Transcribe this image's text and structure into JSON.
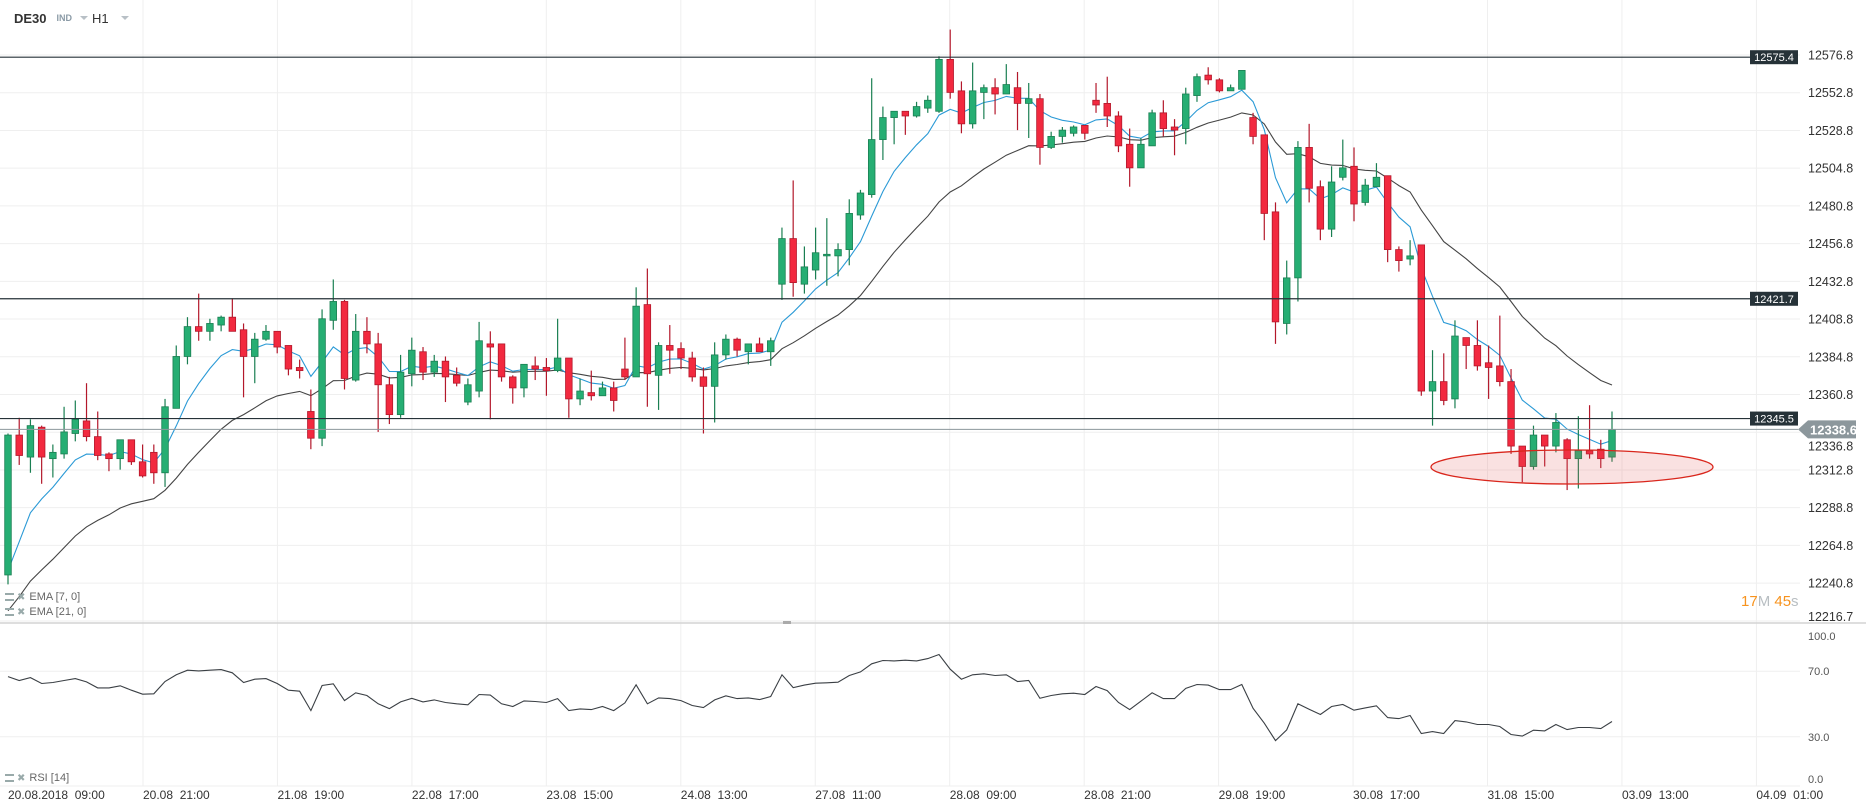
{
  "header": {
    "symbol": "DE30",
    "type": "IND",
    "timeframe": "H1"
  },
  "legend": {
    "ema7": "EMA [7, 0]",
    "ema21": "EMA [21, 0]",
    "rsi": "RSI [14]"
  },
  "timer": {
    "minutes": "17",
    "minutes_unit": "M",
    "seconds": "45",
    "seconds_unit": "s"
  },
  "colors": {
    "up": "#26ae73",
    "up_border": "#1a7f52",
    "down": "#f2293f",
    "down_border": "#b3182b",
    "ema7": "#2b9ad6",
    "ema21": "#444444",
    "level": "#263238",
    "current": "#8c979c",
    "annotation": "#d9261c",
    "timer": "#f7931e"
  },
  "chart_data": [
    {
      "type": "candlestick",
      "title": "DE30 H1",
      "ylim": [
        12216.7,
        12600
      ],
      "y_ticks": [
        "12576.8",
        "12552.8",
        "12528.8",
        "12504.8",
        "12480.8",
        "12456.8",
        "12432.8",
        "12408.8",
        "12384.8",
        "12360.8",
        "12336.8",
        "12312.8",
        "12288.8",
        "12264.8",
        "12240.8",
        "12216.7"
      ],
      "x_ticks": [
        "20.08.2018  09:00",
        "20.08  21:00",
        "21.08  19:00",
        "22.08  17:00",
        "23.08  15:00",
        "24.08  13:00",
        "27.08  11:00",
        "28.08  09:00",
        "28.08  21:00",
        "29.08  19:00",
        "30.08  17:00",
        "31.08  15:00",
        "03.09  13:00",
        "04.09  01:00"
      ],
      "levels": [
        {
          "value": 12575.4,
          "label": "12575.4"
        },
        {
          "value": 12421.7,
          "label": "12421.7"
        },
        {
          "value": 12345.5,
          "label": "12345.5"
        }
      ],
      "current_price": {
        "value": 12338.6,
        "label": "12338.6"
      },
      "ema_seed": {
        "ema7": 12220,
        "ema21": 12212
      },
      "ohlc": [
        [
          12246,
          12336,
          12240,
          12335
        ],
        [
          12335,
          12346,
          12316,
          12322
        ],
        [
          12321,
          12345,
          12311,
          12341
        ],
        [
          12340,
          12341,
          12304,
          12321
        ],
        [
          12320,
          12329,
          12308,
          12324
        ],
        [
          12323,
          12353,
          12320,
          12337
        ],
        [
          12336,
          12357,
          12331,
          12345
        ],
        [
          12344,
          12368,
          12331,
          12334
        ],
        [
          12334,
          12350,
          12319,
          12322
        ],
        [
          12323,
          12324,
          12312,
          12320
        ],
        [
          12320,
          12332,
          12313,
          12332
        ],
        [
          12332,
          12332,
          12316,
          12318
        ],
        [
          12318,
          12329,
          12308,
          12309
        ],
        [
          12324,
          12329,
          12304,
          12311
        ],
        [
          12311,
          12358,
          12302,
          12353
        ],
        [
          12352,
          12392,
          12352,
          12385
        ],
        [
          12385,
          12410,
          12380,
          12404
        ],
        [
          12404,
          12425,
          12395,
          12401
        ],
        [
          12401,
          12409,
          12395,
          12406
        ],
        [
          12405,
          12411,
          12401,
          12410
        ],
        [
          12410,
          12422,
          12401,
          12401
        ],
        [
          12402,
          12406,
          12359,
          12385
        ],
        [
          12385,
          12400,
          12368,
          12396
        ],
        [
          12396,
          12405,
          12395,
          12401
        ],
        [
          12401,
          12401,
          12387,
          12391
        ],
        [
          12392,
          12392,
          12373,
          12377
        ],
        [
          12378,
          12383,
          12371,
          12376
        ],
        [
          12350,
          12364,
          12326,
          12333
        ],
        [
          12333,
          12415,
          12328,
          12409
        ],
        [
          12408,
          12434,
          12402,
          12420
        ],
        [
          12420,
          12421,
          12364,
          12371
        ],
        [
          12370,
          12412,
          12369,
          12401
        ],
        [
          12401,
          12410,
          12387,
          12393
        ],
        [
          12393,
          12400,
          12337,
          12367
        ],
        [
          12367,
          12372,
          12342,
          12348
        ],
        [
          12348,
          12386,
          12346,
          12375
        ],
        [
          12374,
          12397,
          12366,
          12389
        ],
        [
          12388,
          12391,
          12370,
          12375
        ],
        [
          12375,
          12386,
          12372,
          12382
        ],
        [
          12382,
          12385,
          12356,
          12372
        ],
        [
          12373,
          12378,
          12366,
          12368
        ],
        [
          12356,
          12371,
          12354,
          12367
        ],
        [
          12363,
          12407,
          12359,
          12395
        ],
        [
          12393,
          12401,
          12345,
          12391
        ],
        [
          12393,
          12393,
          12369,
          12372
        ],
        [
          12372,
          12373,
          12355,
          12365
        ],
        [
          12365,
          12380,
          12359,
          12380
        ],
        [
          12379,
          12385,
          12370,
          12377
        ],
        [
          12378,
          12384,
          12360,
          12376
        ],
        [
          12376,
          12409,
          12375,
          12384
        ],
        [
          12384,
          12384,
          12346,
          12358
        ],
        [
          12358,
          12371,
          12354,
          12363
        ],
        [
          12362,
          12376,
          12357,
          12360
        ],
        [
          12360,
          12369,
          12360,
          12365
        ],
        [
          12365,
          12369,
          12350,
          12357
        ],
        [
          12377,
          12397,
          12370,
          12372
        ],
        [
          12372,
          12429,
          12372,
          12417
        ],
        [
          12418,
          12441,
          12353,
          12374
        ],
        [
          12373,
          12394,
          12351,
          12392
        ],
        [
          12392,
          12405,
          12374,
          12389
        ],
        [
          12390,
          12394,
          12377,
          12384
        ],
        [
          12384,
          12388,
          12369,
          12372
        ],
        [
          12372,
          12378,
          12336,
          12366
        ],
        [
          12366,
          12394,
          12343,
          12386
        ],
        [
          12386,
          12399,
          12383,
          12396
        ],
        [
          12396,
          12397,
          12385,
          12389
        ],
        [
          12388,
          12393,
          12380,
          12393
        ],
        [
          12393,
          12397,
          12388,
          12388
        ],
        [
          12388,
          12397,
          12379,
          12395
        ],
        [
          12431,
          12467,
          12421,
          12460
        ],
        [
          12460,
          12497,
          12423,
          12432
        ],
        [
          12431,
          12455,
          12425,
          12442
        ],
        [
          12440,
          12467,
          12434,
          12451
        ],
        [
          12449,
          12473,
          12430,
          12450
        ],
        [
          12449,
          12457,
          12436,
          12453
        ],
        [
          12453,
          12485,
          12443,
          12476
        ],
        [
          12475,
          12491,
          12472,
          12489
        ],
        [
          12488,
          12562,
          12486,
          12523
        ],
        [
          12523,
          12544,
          12510,
          12537
        ],
        [
          12537,
          12541,
          12520,
          12541
        ],
        [
          12541,
          12541,
          12526,
          12538
        ],
        [
          12538,
          12547,
          12537,
          12544
        ],
        [
          12543,
          12551,
          12540,
          12548
        ],
        [
          12541,
          12576,
          12540,
          12574
        ],
        [
          12574,
          12593,
          12549,
          12553
        ],
        [
          12554,
          12560,
          12527,
          12533
        ],
        [
          12533,
          12572,
          12530,
          12554
        ],
        [
          12553,
          12558,
          12536,
          12556
        ],
        [
          12556,
          12562,
          12539,
          12552
        ],
        [
          12552,
          12571,
          12552,
          12558
        ],
        [
          12556,
          12566,
          12529,
          12546
        ],
        [
          12546,
          12559,
          12524,
          12549
        ],
        [
          12549,
          12552,
          12507,
          12518
        ],
        [
          12518,
          12528,
          12517,
          12525
        ],
        [
          12525,
          12531,
          12521,
          12529
        ],
        [
          12527,
          12532,
          12525,
          12531
        ],
        [
          12532,
          12532,
          12523,
          12527
        ],
        [
          12548,
          12559,
          12540,
          12545
        ],
        [
          12546,
          12563,
          12531,
          12538
        ],
        [
          12538,
          12541,
          12515,
          12519
        ],
        [
          12520,
          12530,
          12493,
          12505
        ],
        [
          12505,
          12524,
          12505,
          12520
        ],
        [
          12519,
          12542,
          12519,
          12540
        ],
        [
          12540,
          12548,
          12525,
          12530
        ],
        [
          12531,
          12536,
          12513,
          12529
        ],
        [
          12530,
          12556,
          12520,
          12552
        ],
        [
          12551,
          12565,
          12547,
          12563
        ],
        [
          12564,
          12569,
          12558,
          12561
        ],
        [
          12561,
          12562,
          12553,
          12554
        ],
        [
          12554,
          12558,
          12554,
          12556
        ],
        [
          12555,
          12567,
          12555,
          12567
        ],
        [
          12537,
          12540,
          12520,
          12525
        ],
        [
          12526,
          12526,
          12459,
          12476
        ],
        [
          12477,
          12483,
          12393,
          12407
        ],
        [
          12406,
          12446,
          12399,
          12435
        ],
        [
          12435,
          12522,
          12420,
          12518
        ],
        [
          12518,
          12533,
          12483,
          12492
        ],
        [
          12493,
          12497,
          12459,
          12466
        ],
        [
          12466,
          12506,
          12461,
          12496
        ],
        [
          12499,
          12523,
          12497,
          12505
        ],
        [
          12506,
          12518,
          12471,
          12482
        ],
        [
          12483,
          12498,
          12481,
          12494
        ],
        [
          12493,
          12508,
          12493,
          12499
        ],
        [
          12500,
          12500,
          12445,
          12453
        ],
        [
          12453,
          12455,
          12439,
          12446
        ],
        [
          12447,
          12459,
          12443,
          12449
        ],
        [
          12456,
          12456,
          12360,
          12363
        ],
        [
          12363,
          12389,
          12341,
          12369
        ],
        [
          12369,
          12387,
          12354,
          12357
        ],
        [
          12358,
          12408,
          12352,
          12398
        ],
        [
          12397,
          12397,
          12377,
          12392
        ],
        [
          12392,
          12408,
          12376,
          12379
        ],
        [
          12381,
          12392,
          12358,
          12378
        ],
        [
          12379,
          12411,
          12366,
          12369
        ],
        [
          12369,
          12377,
          12323,
          12328
        ],
        [
          12328,
          12328,
          12305,
          12315
        ],
        [
          12315,
          12341,
          12313,
          12335
        ],
        [
          12335,
          12335,
          12315,
          12328
        ],
        [
          12328,
          12349,
          12324,
          12343
        ],
        [
          12332,
          12333,
          12300,
          12320
        ],
        [
          12320,
          12347,
          12301,
          12325
        ],
        [
          12325,
          12354,
          12320,
          12323
        ],
        [
          12326,
          12332,
          12314,
          12320
        ],
        [
          12321,
          12350,
          12318,
          12338.6
        ]
      ]
    },
    {
      "type": "line",
      "title": "RSI [14]",
      "ylim": [
        0,
        100
      ],
      "y_ticks": [
        "100.0",
        "70.0",
        "30.0",
        "0.0"
      ],
      "values": [
        66.7,
        64.3,
        66.1,
        62.5,
        63.1,
        64.3,
        65.5,
        63.5,
        59.8,
        59.8,
        61.1,
        58.4,
        56.0,
        56.2,
        63.7,
        67.8,
        70.6,
        70.2,
        70.6,
        71.0,
        69.0,
        63.1,
        65.1,
        65.5,
        62.5,
        58.4,
        57.8,
        46.0,
        61.3,
        62.3,
        52.1,
        56.8,
        55.2,
        50.1,
        47.2,
        51.3,
        53.5,
        51.3,
        52.5,
        50.9,
        50.1,
        49.5,
        55.8,
        55.4,
        50.1,
        48.5,
        51.9,
        51.5,
        50.9,
        53.3,
        46.0,
        47.0,
        46.6,
        48.5,
        46.0,
        50.7,
        61.7,
        50.1,
        53.7,
        53.3,
        52.1,
        49.1,
        47.8,
        52.5,
        55.0,
        53.3,
        53.7,
        52.7,
        54.6,
        67.8,
        60.0,
        61.5,
        62.7,
        62.9,
        63.3,
        67.4,
        69.6,
        74.5,
        76.5,
        76.3,
        76.7,
        76.3,
        77.7,
        80.2,
        71.2,
        65.1,
        67.8,
        68.4,
        67.4,
        67.8,
        63.7,
        64.3,
        53.5,
        55.2,
        56.2,
        56.6,
        55.8,
        60.7,
        58.2,
        50.9,
        46.6,
        51.7,
        56.8,
        53.3,
        53.3,
        59.6,
        61.9,
        61.5,
        58.8,
        58.8,
        61.9,
        47.4,
        38.3,
        27.7,
        34.2,
        50.1,
        46.8,
        43.6,
        48.5,
        49.7,
        46.2,
        47.6,
        48.9,
        41.7,
        41.1,
        43.0,
        32.0,
        33.2,
        32.0,
        39.9,
        39.1,
        37.5,
        37.5,
        36.3,
        31.4,
        30.4,
        34.0,
        33.6,
        37.5,
        34.4,
        35.7,
        35.7,
        35.0,
        39.3
      ]
    }
  ]
}
